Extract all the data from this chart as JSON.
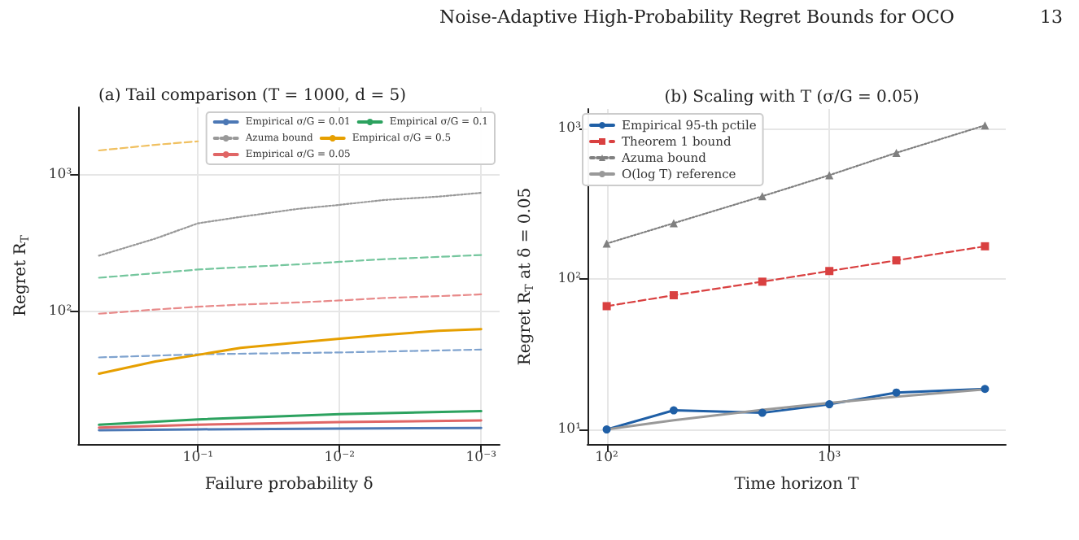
{
  "chart_data": [
    {
      "type": "line",
      "title": "(a) Tail comparison (T = 1000, d = 5)",
      "xlabel": "Failure probability δ",
      "ylabel": "Regret R$_{T}$",
      "annotations": [
        "Noise-Adaptive High-Probability Regret Bounds for OCO",
        "13"
      ],
      "log": "xy",
      "grid": true,
      "legend": "top right",
      "xlim": [
        0.7,
        0.00074
      ],
      "xticks": [
        {
          "value": 0.1,
          "label": "10⁻¹"
        },
        {
          "value": 0.01,
          "label": "10⁻²"
        },
        {
          "value": 0.001,
          "label": "10⁻³"
        }
      ],
      "ylim": [
        10.7,
        3100
      ],
      "yticks": [
        {
          "value": 100,
          "label": "10²"
        },
        {
          "value": 1000,
          "label": "10³"
        }
      ],
      "series": [
        {
          "name": "Empirical σ/G = 0.01",
          "color": "#4c78b5",
          "line_style": "solid",
          "x": [
            0.5,
            0.1,
            0.01,
            0.001
          ],
          "values": [
            13.5,
            13.7,
            13.9,
            14.0
          ]
        },
        {
          "name": "Empirical σ/G = 0.1",
          "color": "#2ca25f",
          "line_style": "solid",
          "x": [
            0.5,
            0.1,
            0.01,
            0.001
          ],
          "values": [
            14.8,
            16.2,
            17.7,
            18.6
          ]
        },
        {
          "name": "Azuma bound",
          "color": "#999999",
          "line_style": "dotted",
          "x": [
            0.5,
            0.2,
            0.1,
            0.05,
            0.02,
            0.01,
            0.005,
            0.002,
            0.001
          ],
          "values": [
            255,
            340,
            440,
            490,
            560,
            600,
            650,
            690,
            735
          ]
        },
        {
          "name": "Empirical σ/G = 0.5",
          "color": "#e69f00",
          "line_style": "solid",
          "x": [
            0.5,
            0.2,
            0.1,
            0.05,
            0.02,
            0.01,
            0.005,
            0.002,
            0.001
          ],
          "values": [
            35,
            43,
            48,
            54,
            59,
            63,
            67,
            72,
            74
          ]
        },
        {
          "name": "Empirical σ/G = 0.05",
          "color": "#e06666",
          "line_style": "solid",
          "x": [
            0.5,
            0.1,
            0.01,
            0.001
          ],
          "values": [
            14.1,
            14.8,
            15.5,
            15.9
          ]
        },
        {
          "color": "#7fa3cf",
          "line_style": "dashed",
          "x": [
            0.5,
            0.1,
            0.01,
            0.001
          ],
          "values": [
            46,
            48.5,
            50,
            52.5
          ]
        },
        {
          "color": "#e88a8a",
          "line_style": "dashed",
          "x": [
            0.5,
            0.2,
            0.1,
            0.05,
            0.02,
            0.01,
            0.005,
            0.002,
            0.001
          ],
          "values": [
            96,
            103,
            108,
            112,
            116,
            120,
            125,
            129,
            133
          ]
        },
        {
          "color": "#74c69d",
          "line_style": "dashed",
          "x": [
            0.5,
            0.2,
            0.1,
            0.05,
            0.02,
            0.01,
            0.005,
            0.002,
            0.001
          ],
          "values": [
            176,
            190,
            202,
            210,
            220,
            230,
            240,
            250,
            258
          ]
        },
        {
          "color": "#f0c060",
          "line_style": "dashed",
          "x": [
            0.5,
            0.2,
            0.1
          ],
          "values": [
            1500,
            1650,
            1750
          ]
        }
      ]
    },
    {
      "type": "line",
      "title": "(b) Scaling with T (σ/G = 0.05)",
      "xlabel": "Time horizon T",
      "ylabel": "Regret R$_{T}$ at δ = 0.05",
      "log": "xy",
      "grid": true,
      "legend": "top left",
      "xlim": [
        82,
        6200
      ],
      "xticks": [
        {
          "value": 100,
          "label": "10²"
        },
        {
          "value": 1000,
          "label": "10³"
        }
      ],
      "ylim": [
        8,
        1350
      ],
      "yticks": [
        {
          "value": 10,
          "label": "10¹"
        },
        {
          "value": 100,
          "label": "10²"
        },
        {
          "value": 1000,
          "label": "10³"
        }
      ],
      "x": [
        100,
        200,
        500,
        1000,
        2000,
        5000
      ],
      "series": [
        {
          "name": "Empirical 95-th pctile",
          "color": "#1f5fa6",
          "marker": "circle",
          "line_style": "solid",
          "values": [
            10,
            13.4,
            12.9,
            14.7,
            17.6,
            18.6
          ]
        },
        {
          "name": "Theorem 1 bound",
          "color": "#d94040",
          "marker": "square",
          "line_style": "dashed",
          "values": [
            66,
            78,
            96,
            113,
            133,
            165
          ]
        },
        {
          "name": "Azuma bound",
          "color": "#808080",
          "marker": "triangle",
          "line_style": "dotted",
          "values": [
            172,
            235,
            355,
            490,
            690,
            1050
          ]
        },
        {
          "name": "O(log T) reference",
          "color": "#999999",
          "marker": "none",
          "line_style": "solid",
          "values": [
            10,
            11.5,
            13.5,
            15,
            16.5,
            18.5
          ]
        }
      ]
    }
  ]
}
